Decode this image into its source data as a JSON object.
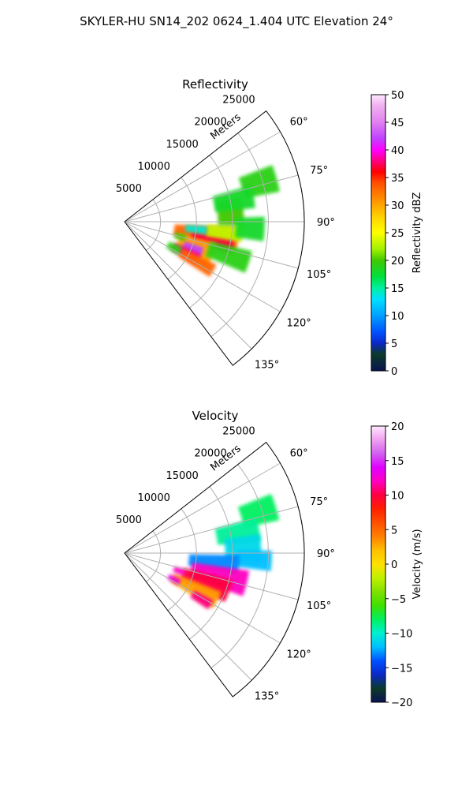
{
  "suptitle": "SKYLER-HU  SN14_202  0624_1.404 UTC Elevation 24°",
  "chart_data": [
    {
      "type": "heatmap",
      "projection": "polar-sector",
      "title": "Reflectivity",
      "range_label": "Meters",
      "range_ticks": [
        5000,
        10000,
        15000,
        20000,
        25000
      ],
      "range_tick_labels": [
        "5000",
        "10000",
        "15000",
        "20000",
        "25000"
      ],
      "range_lim": [
        0,
        25000
      ],
      "azimuth_ticks": [
        60,
        75,
        90,
        105,
        120,
        135
      ],
      "azimuth_tick_labels": [
        "60°",
        "75°",
        "90°",
        "105°",
        "120°",
        "135°"
      ],
      "azimuth_lim": [
        52,
        143
      ],
      "grid": true,
      "colorbar": {
        "label": "Reflectivity dBZ",
        "range": [
          0,
          50
        ],
        "ticks": [
          0,
          5,
          10,
          15,
          20,
          25,
          30,
          35,
          40,
          45,
          50
        ],
        "tick_labels": [
          "0",
          "5",
          "10",
          "15",
          "20",
          "25",
          "30",
          "35",
          "40",
          "45",
          "50"
        ],
        "stops": [
          {
            "v": 0,
            "c": "#0a1450"
          },
          {
            "v": 3,
            "c": "#0b3a2a"
          },
          {
            "v": 5,
            "c": "#0a28c8"
          },
          {
            "v": 7,
            "c": "#0050ff"
          },
          {
            "v": 10,
            "c": "#00a0ff"
          },
          {
            "v": 13,
            "c": "#00e0ff"
          },
          {
            "v": 15,
            "c": "#00f0a0"
          },
          {
            "v": 17,
            "c": "#00e040"
          },
          {
            "v": 20,
            "c": "#40c800"
          },
          {
            "v": 22,
            "c": "#a0f000"
          },
          {
            "v": 25,
            "c": "#ffff00"
          },
          {
            "v": 28,
            "c": "#ffd000"
          },
          {
            "v": 31,
            "c": "#ff9000"
          },
          {
            "v": 34,
            "c": "#ff5000"
          },
          {
            "v": 36,
            "c": "#ff0000"
          },
          {
            "v": 38,
            "c": "#ff0080"
          },
          {
            "v": 40,
            "c": "#ff00ff"
          },
          {
            "v": 42,
            "c": "#c040ff"
          },
          {
            "v": 45,
            "c": "#e080f0"
          },
          {
            "v": 48,
            "c": "#f0b0f0"
          },
          {
            "v": 50,
            "c": "#ffe8ff"
          }
        ]
      },
      "blobs": [
        {
          "az": 99,
          "r": 11500,
          "daz": 6,
          "dr": 4500,
          "v": 33
        },
        {
          "az": 103,
          "r": 12500,
          "daz": 4,
          "dr": 3000,
          "v": 37
        },
        {
          "az": 96,
          "r": 14000,
          "daz": 4,
          "dr": 2500,
          "v": 23
        },
        {
          "az": 111,
          "r": 10500,
          "daz": 8,
          "dr": 2600,
          "v": 30
        },
        {
          "az": 112,
          "r": 10200,
          "daz": 4,
          "dr": 1400,
          "v": 42
        },
        {
          "az": 117,
          "r": 9500,
          "daz": 4,
          "dr": 2000,
          "v": 38
        },
        {
          "az": 119,
          "r": 11500,
          "daz": 4,
          "dr": 2600,
          "v": 33
        },
        {
          "az": 85,
          "r": 14800,
          "daz": 7,
          "dr": 1800,
          "v": 20
        },
        {
          "az": 93,
          "r": 17500,
          "daz": 5,
          "dr": 2000,
          "v": 18
        },
        {
          "az": 74,
          "r": 19500,
          "daz": 5,
          "dr": 2500,
          "v": 19
        },
        {
          "az": 79,
          "r": 15500,
          "daz": 5,
          "dr": 2800,
          "v": 18
        },
        {
          "az": 108,
          "r": 15200,
          "daz": 5,
          "dr": 3000,
          "v": 19
        },
        {
          "az": 118,
          "r": 7800,
          "daz": 4,
          "dr": 1000,
          "v": 19
        },
        {
          "az": 105,
          "r": 8000,
          "daz": 3,
          "dr": 800,
          "v": 20
        },
        {
          "az": 96,
          "r": 10000,
          "daz": 3,
          "dr": 1500,
          "v": 14
        }
      ]
    },
    {
      "type": "heatmap",
      "projection": "polar-sector",
      "title": "Velocity",
      "range_label": "Meters",
      "range_ticks": [
        5000,
        10000,
        15000,
        20000,
        25000
      ],
      "range_tick_labels": [
        "5000",
        "10000",
        "15000",
        "20000",
        "25000"
      ],
      "range_lim": [
        0,
        25000
      ],
      "azimuth_ticks": [
        60,
        75,
        90,
        105,
        120,
        135
      ],
      "azimuth_tick_labels": [
        "60°",
        "75°",
        "90°",
        "105°",
        "120°",
        "135°"
      ],
      "azimuth_lim": [
        52,
        143
      ],
      "grid": true,
      "colorbar": {
        "label": "Velocity (m/s)",
        "range": [
          -20,
          20
        ],
        "ticks": [
          -20,
          -15,
          -10,
          -5,
          0,
          5,
          10,
          15,
          20
        ],
        "tick_labels": [
          "−20",
          "−15",
          "−10",
          "−5",
          "0",
          "5",
          "10",
          "15",
          "20"
        ],
        "stops": [
          {
            "v": -20,
            "c": "#0a1450"
          },
          {
            "v": -18,
            "c": "#0b3a2a"
          },
          {
            "v": -16,
            "c": "#0a28c8"
          },
          {
            "v": -14,
            "c": "#0050ff"
          },
          {
            "v": -12,
            "c": "#00c0ff"
          },
          {
            "v": -10,
            "c": "#00f0d0"
          },
          {
            "v": -8,
            "c": "#00f060"
          },
          {
            "v": -6,
            "c": "#40e000"
          },
          {
            "v": -4,
            "c": "#80e000"
          },
          {
            "v": -2,
            "c": "#c0f000"
          },
          {
            "v": 0,
            "c": "#ffe000"
          },
          {
            "v": 2,
            "c": "#ffc000"
          },
          {
            "v": 4,
            "c": "#ff8000"
          },
          {
            "v": 6,
            "c": "#ff5000"
          },
          {
            "v": 8,
            "c": "#ff2000"
          },
          {
            "v": 10,
            "c": "#ff0040"
          },
          {
            "v": 12,
            "c": "#ff00c0"
          },
          {
            "v": 14,
            "c": "#e000ff"
          },
          {
            "v": 16,
            "c": "#d060f0"
          },
          {
            "v": 18,
            "c": "#f0a0f0"
          },
          {
            "v": 20,
            "c": "#ffe8ff"
          }
        ]
      },
      "blobs": [
        {
          "az": 73,
          "r": 19500,
          "daz": 5,
          "dr": 2500,
          "v": -8
        },
        {
          "az": 80,
          "r": 16000,
          "daz": 5,
          "dr": 3000,
          "v": -9
        },
        {
          "az": 88,
          "r": 16500,
          "daz": 6,
          "dr": 2500,
          "v": -11
        },
        {
          "az": 93,
          "r": 18000,
          "daz": 4,
          "dr": 2500,
          "v": -12
        },
        {
          "az": 96,
          "r": 12500,
          "daz": 5,
          "dr": 3500,
          "v": -13
        },
        {
          "az": 104,
          "r": 13500,
          "daz": 6,
          "dr": 4000,
          "v": 12
        },
        {
          "az": 110,
          "r": 12000,
          "daz": 6,
          "dr": 3500,
          "v": 10
        },
        {
          "az": 117,
          "r": 11000,
          "daz": 5,
          "dr": 3500,
          "v": 3
        },
        {
          "az": 121,
          "r": 12500,
          "daz": 3,
          "dr": 1500,
          "v": 11
        },
        {
          "az": 118,
          "r": 7800,
          "daz": 3,
          "dr": 900,
          "v": 13
        },
        {
          "az": 108,
          "r": 8000,
          "daz": 3,
          "dr": 800,
          "v": 12
        }
      ]
    }
  ]
}
